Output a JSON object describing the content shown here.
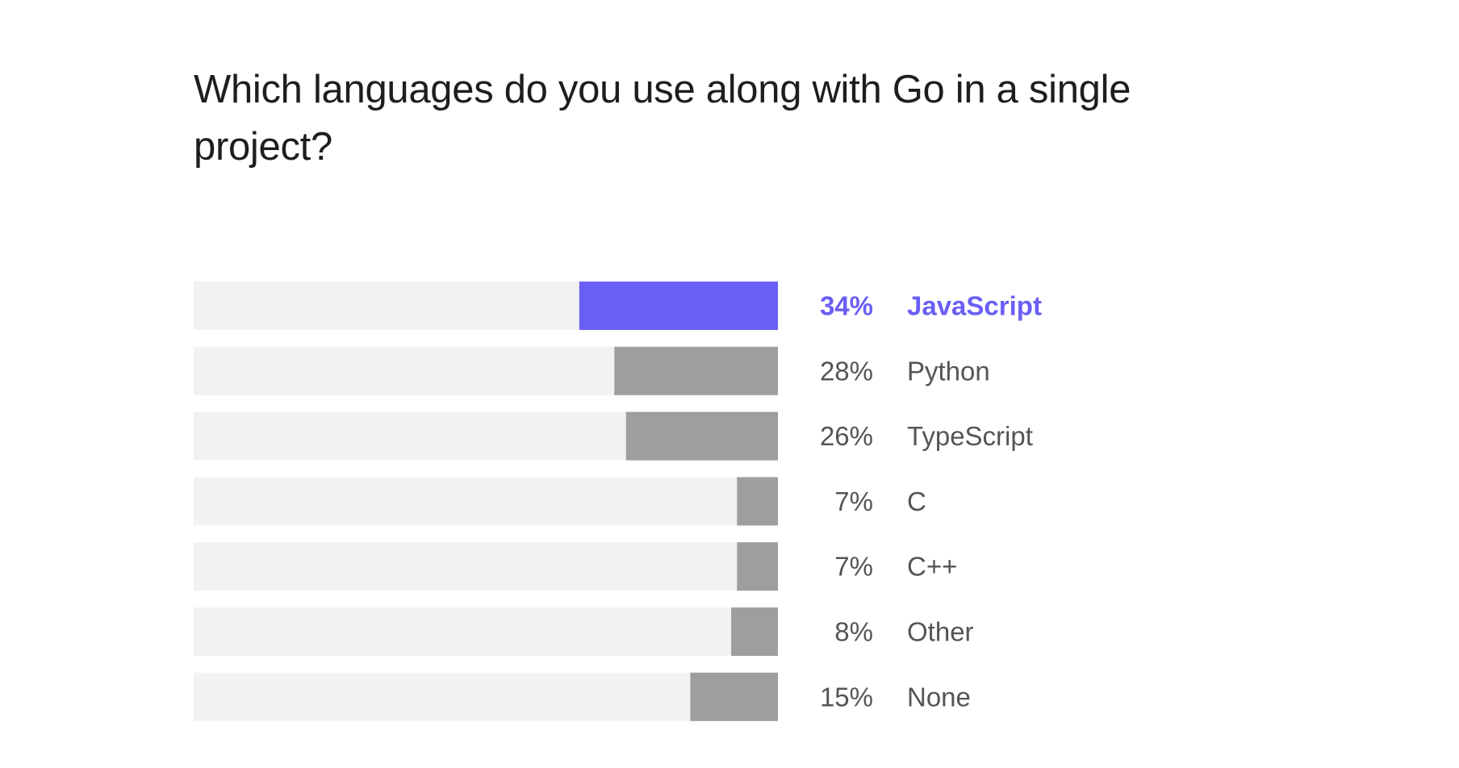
{
  "chart_data": {
    "type": "bar",
    "orientation": "horizontal",
    "title": "Which languages do you use along with Go in a single project?",
    "categories": [
      "JavaScript",
      "Python",
      "TypeScript",
      "C",
      "C++",
      "Other",
      "None"
    ],
    "values": [
      34,
      28,
      26,
      7,
      7,
      8,
      15
    ],
    "value_labels": [
      "34%",
      "28%",
      "26%",
      "7%",
      "7%",
      "8%",
      "15%"
    ],
    "unit": "%",
    "xlim": [
      0,
      100
    ],
    "highlight_index": 0,
    "colors": {
      "highlight": "#6a5ff5",
      "bar": "#9e9e9e",
      "track": "#f2f2f2",
      "text": "#555555",
      "title": "#1e1e1e"
    },
    "grid": false,
    "legend": "none"
  }
}
